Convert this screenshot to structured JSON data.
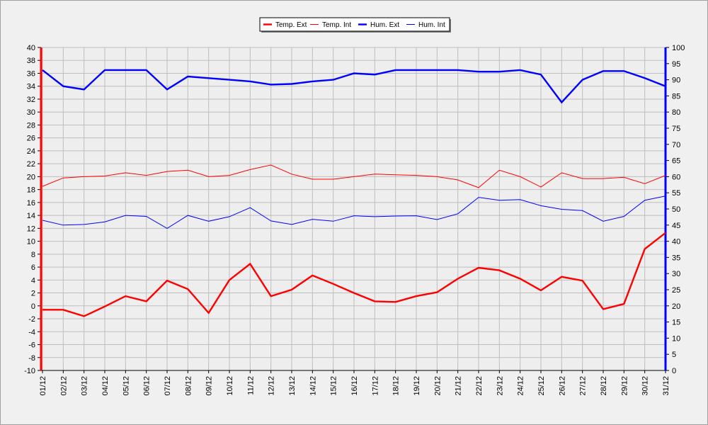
{
  "chart_data": {
    "type": "line",
    "title": "",
    "xlabel": "",
    "ylabel": "",
    "categories": [
      "01/12",
      "02/12",
      "03/12",
      "04/12",
      "05/12",
      "06/12",
      "07/12",
      "08/12",
      "09/12",
      "10/12",
      "11/12",
      "12/12",
      "13/12",
      "14/12",
      "15/12",
      "16/12",
      "17/12",
      "18/12",
      "19/12",
      "20/12",
      "21/12",
      "22/12",
      "23/12",
      "24/12",
      "25/12",
      "26/12",
      "27/12",
      "28/12",
      "29/12",
      "30/12",
      "31/12"
    ],
    "ylim_left": [
      -10,
      40
    ],
    "ylim_right": [
      0,
      100
    ],
    "yticks_left": [
      "40",
      "38",
      "36",
      "34",
      "32",
      "30",
      "28",
      "26",
      "24",
      "22",
      "20",
      "18",
      "16",
      "14",
      "12",
      "10",
      "8",
      "6",
      "4",
      "2",
      "0",
      "-2",
      "-4",
      "-6",
      "-8",
      "-10"
    ],
    "yticks_right": [
      "100",
      "95",
      "90",
      "85",
      "80",
      "75",
      "70",
      "65",
      "60",
      "55",
      "50",
      "45",
      "40",
      "35",
      "30",
      "25",
      "20",
      "15",
      "10",
      "5",
      "0"
    ],
    "grid": true,
    "legend_position": "top-center",
    "series": [
      {
        "name": "Temp. Ext",
        "axis": "left",
        "color": "#ff0000",
        "width": "thick",
        "values": [
          -0.6,
          -0.6,
          -1.6,
          -0.1,
          1.5,
          0.7,
          3.9,
          2.6,
          -1.1,
          4.0,
          6.5,
          1.5,
          2.5,
          4.7,
          3.4,
          2.0,
          0.7,
          0.6,
          1.5,
          2.1,
          4.2,
          5.9,
          5.5,
          4.2,
          2.4,
          4.5,
          3.9,
          -0.5,
          0.3,
          8.8,
          11.3
        ]
      },
      {
        "name": "Temp. Int",
        "axis": "left",
        "color": "#ff0000",
        "width": "thin",
        "values": [
          18.5,
          19.8,
          20.0,
          20.1,
          20.6,
          20.2,
          20.8,
          21.0,
          20.0,
          20.2,
          21.1,
          21.8,
          20.4,
          19.6,
          19.6,
          20.0,
          20.4,
          20.3,
          20.2,
          20.0,
          19.5,
          18.3,
          21.0,
          20.0,
          18.4,
          20.6,
          19.7,
          19.7,
          19.9,
          18.9,
          20.2
        ]
      },
      {
        "name": "Hum. Ext",
        "axis": "right",
        "color": "#0000ff",
        "width": "thick",
        "values": [
          93,
          88,
          87,
          93,
          93,
          93,
          87,
          91,
          90.5,
          90,
          89.5,
          88.5,
          88.7,
          89.5,
          90,
          92,
          91.6,
          93,
          93,
          93,
          93,
          92.5,
          92.5,
          93,
          91.6,
          83,
          90,
          92.7,
          92.7,
          90.5,
          88
        ]
      },
      {
        "name": "Hum. Int",
        "axis": "right",
        "color": "#0000ff",
        "width": "thin",
        "values": [
          46.5,
          45,
          45.2,
          46,
          48,
          47.7,
          44,
          48,
          46.2,
          47.6,
          50.4,
          46.3,
          45.2,
          46.8,
          46.2,
          47.9,
          47.6,
          47.8,
          47.9,
          46.7,
          48.5,
          53.6,
          52.7,
          52.9,
          51,
          49.9,
          49.5,
          46.2,
          47.7,
          52.7,
          54
        ]
      }
    ]
  }
}
